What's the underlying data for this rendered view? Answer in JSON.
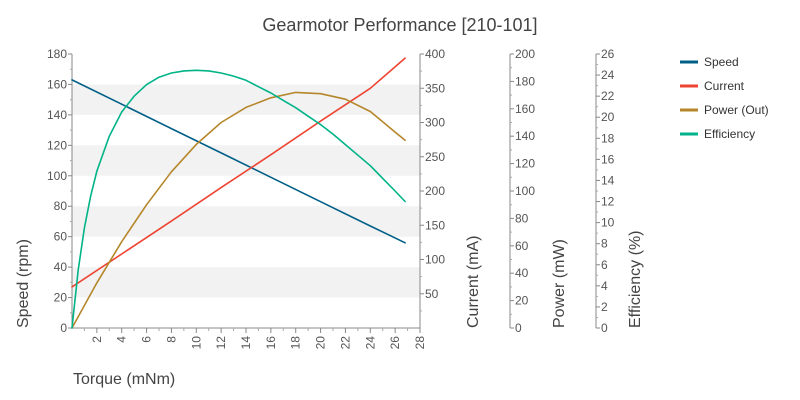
{
  "chart_data": {
    "type": "line",
    "title": "Gearmotor Performance [210-101]",
    "xlabel": "Torque (mNm)",
    "xlim": [
      0,
      28
    ],
    "x_ticks": [
      "2",
      "4",
      "6",
      "8",
      "10",
      "12",
      "14",
      "16",
      "18",
      "20",
      "22",
      "24",
      "26",
      "28"
    ],
    "grid": "alternating horizontal bands",
    "axes": [
      {
        "id": "speed",
        "label": "Speed (rpm)",
        "range": [
          0,
          180
        ],
        "ticks": [
          "0",
          "20",
          "40",
          "60",
          "80",
          "100",
          "120",
          "140",
          "160",
          "180"
        ]
      },
      {
        "id": "current",
        "label": "Current (mA)",
        "range": [
          0,
          400
        ],
        "ticks": [
          "50",
          "100",
          "150",
          "200",
          "250",
          "300",
          "350",
          "400"
        ]
      },
      {
        "id": "power",
        "label": "Power (mW)",
        "range": [
          0,
          200
        ],
        "ticks": [
          "0",
          "20",
          "40",
          "60",
          "80",
          "100",
          "120",
          "140",
          "160",
          "180",
          "200"
        ]
      },
      {
        "id": "efficiency",
        "label": "Efficiency (%)",
        "range": [
          0,
          26
        ],
        "ticks": [
          "0",
          "2",
          "4",
          "6",
          "8",
          "10",
          "12",
          "14",
          "16",
          "18",
          "20",
          "22",
          "24",
          "26"
        ]
      }
    ],
    "series": [
      {
        "name": "Speed",
        "axis": "speed",
        "color": "#005f87",
        "x": [
          0,
          4,
          8,
          12,
          16,
          20,
          24,
          26.8
        ],
        "y": [
          163,
          147,
          131,
          115,
          99,
          83,
          67,
          56
        ]
      },
      {
        "name": "Current",
        "axis": "current",
        "color": "#ee4433",
        "x": [
          0,
          4,
          8,
          12,
          16,
          20,
          24,
          26.8
        ],
        "y": [
          60,
          108,
          156,
          205,
          253,
          302,
          350,
          394
        ]
      },
      {
        "name": "Power (Out)",
        "axis": "power",
        "color": "#b5862a",
        "x": [
          0,
          2,
          4,
          6,
          8,
          10,
          12,
          14,
          16,
          18,
          20,
          22,
          24,
          26,
          26.8
        ],
        "y": [
          0,
          33,
          63,
          90,
          114,
          134,
          150,
          161,
          168,
          172,
          171,
          167,
          158,
          143,
          137
        ]
      },
      {
        "name": "Efficiency",
        "axis": "efficiency",
        "color": "#00b388",
        "x": [
          0,
          0.5,
          1,
          1.5,
          2,
          3,
          4,
          5,
          6,
          7,
          8,
          9,
          10,
          11,
          12,
          13,
          14,
          15,
          16,
          17,
          18,
          19,
          20,
          21,
          22,
          23,
          24,
          25,
          26,
          26.8
        ],
        "y": [
          0,
          5.5,
          9.5,
          12.5,
          14.9,
          18.2,
          20.5,
          22.0,
          23.1,
          23.8,
          24.2,
          24.4,
          24.45,
          24.4,
          24.2,
          23.9,
          23.5,
          22.9,
          22.3,
          21.6,
          20.9,
          20.1,
          19.3,
          18.4,
          17.4,
          16.4,
          15.4,
          14.2,
          13.0,
          12.0
        ]
      }
    ],
    "legend": {
      "position": "top-right",
      "entries": [
        "Speed",
        "Current",
        "Power (Out)",
        "Efficiency"
      ]
    }
  }
}
